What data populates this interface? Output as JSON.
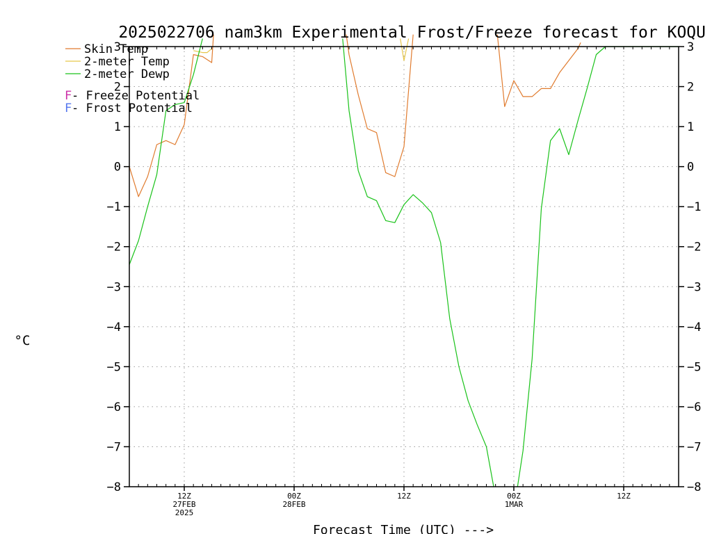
{
  "chart_data": {
    "type": "line",
    "title": "2025022706 nam3km Experimental Frost/Freeze forecast for KOQU",
    "xlabel": "Forecast Time (UTC) --->",
    "ylabel": "°C",
    "ylim": [
      -8,
      3
    ],
    "yticks": [
      "3",
      "2",
      "1",
      "0",
      "−1",
      "−2",
      "−3",
      "−4",
      "−5",
      "−6",
      "−7",
      "−8"
    ],
    "ytick_values": [
      3,
      2,
      1,
      0,
      -1,
      -2,
      -3,
      -4,
      -5,
      -6,
      -7,
      -8
    ],
    "x_unit": "hours after 2025-02-27 06Z",
    "xlim": [
      0,
      60
    ],
    "xticks": [
      {
        "h": 6,
        "lines": [
          "12Z",
          "27FEB",
          "2025"
        ]
      },
      {
        "h": 18,
        "lines": [
          "00Z",
          "28FEB"
        ]
      },
      {
        "h": 30,
        "lines": [
          "12Z"
        ]
      },
      {
        "h": 42,
        "lines": [
          "00Z",
          "1MAR"
        ]
      },
      {
        "h": 54,
        "lines": [
          "12Z"
        ]
      }
    ],
    "grid": true,
    "legend": {
      "position": "top-left",
      "items": [
        {
          "name": "Skin Temp",
          "color": "#e07b2e"
        },
        {
          "name": "2-meter Temp",
          "color": "#e6c64a"
        },
        {
          "name": "2-meter Dewp",
          "color": "#19c219"
        }
      ],
      "potentials": [
        {
          "letter": "F",
          "label": " - Freeze Potential",
          "color": "#cc2fa8"
        },
        {
          "letter": "F",
          "label": " - Frost Potential",
          "color": "#5577ee"
        }
      ]
    },
    "series": [
      {
        "name": "Skin Temp",
        "color": "#e07b2e",
        "points": [
          [
            0,
            0.0
          ],
          [
            1,
            -0.75
          ],
          [
            2,
            -0.25
          ],
          [
            3,
            0.55
          ],
          [
            4,
            0.65
          ],
          [
            5,
            0.55
          ],
          [
            6,
            1.05
          ],
          [
            7,
            2.8
          ],
          [
            8,
            2.75
          ],
          [
            9,
            2.6
          ],
          [
            9.2,
            3.3
          ],
          [
            null,
            null
          ],
          [
            23.7,
            3.3
          ],
          [
            24,
            2.8
          ],
          [
            25,
            1.8
          ],
          [
            26,
            0.95
          ],
          [
            27,
            0.85
          ],
          [
            28,
            -0.15
          ],
          [
            29,
            -0.25
          ],
          [
            30,
            0.5
          ],
          [
            31,
            3.3
          ],
          [
            null,
            null
          ],
          [
            40.2,
            3.3
          ],
          [
            41,
            1.5
          ],
          [
            42,
            2.15
          ],
          [
            43,
            1.75
          ],
          [
            44,
            1.75
          ],
          [
            45,
            1.95
          ],
          [
            46,
            1.95
          ],
          [
            47,
            2.35
          ],
          [
            48,
            2.65
          ],
          [
            49,
            2.95
          ],
          [
            49.3,
            3.1
          ]
        ]
      },
      {
        "name": "2-meter Temp",
        "color": "#e6c64a",
        "points": [
          [
            7,
            2.9
          ],
          [
            8,
            2.85
          ],
          [
            8.5,
            2.85
          ],
          [
            9,
            2.95
          ],
          [
            null,
            null
          ],
          [
            29.6,
            3.2
          ],
          [
            30,
            2.65
          ],
          [
            30.5,
            3.2
          ]
        ]
      },
      {
        "name": "2-meter Dewp",
        "color": "#19c219",
        "points": [
          [
            0,
            -2.45
          ],
          [
            1,
            -1.85
          ],
          [
            2,
            -1.0
          ],
          [
            3,
            -0.2
          ],
          [
            4,
            1.4
          ],
          [
            5,
            1.55
          ],
          [
            6,
            1.6
          ],
          [
            7,
            2.3
          ],
          [
            8,
            3.2
          ],
          [
            null,
            null
          ],
          [
            23.3,
            3.2
          ],
          [
            24,
            1.4
          ],
          [
            25,
            -0.1
          ],
          [
            26,
            -0.75
          ],
          [
            27,
            -0.85
          ],
          [
            28,
            -1.35
          ],
          [
            29,
            -1.4
          ],
          [
            30,
            -0.95
          ],
          [
            31,
            -0.7
          ],
          [
            32,
            -0.9
          ],
          [
            33,
            -1.15
          ],
          [
            34,
            -1.9
          ],
          [
            35,
            -3.8
          ],
          [
            36,
            -5.0
          ],
          [
            37,
            -5.85
          ],
          [
            38,
            -6.45
          ],
          [
            39,
            -7.0
          ],
          [
            39.8,
            -8.0
          ],
          [
            null,
            null
          ],
          [
            42.4,
            -8.0
          ],
          [
            43,
            -7.1
          ],
          [
            44,
            -4.8
          ],
          [
            45,
            -1.05
          ],
          [
            46,
            0.65
          ],
          [
            47,
            0.95
          ],
          [
            48,
            0.3
          ],
          [
            49,
            1.15
          ],
          [
            50,
            1.95
          ],
          [
            51,
            2.8
          ],
          [
            52,
            3.0
          ],
          [
            60,
            3.0
          ]
        ]
      }
    ]
  }
}
